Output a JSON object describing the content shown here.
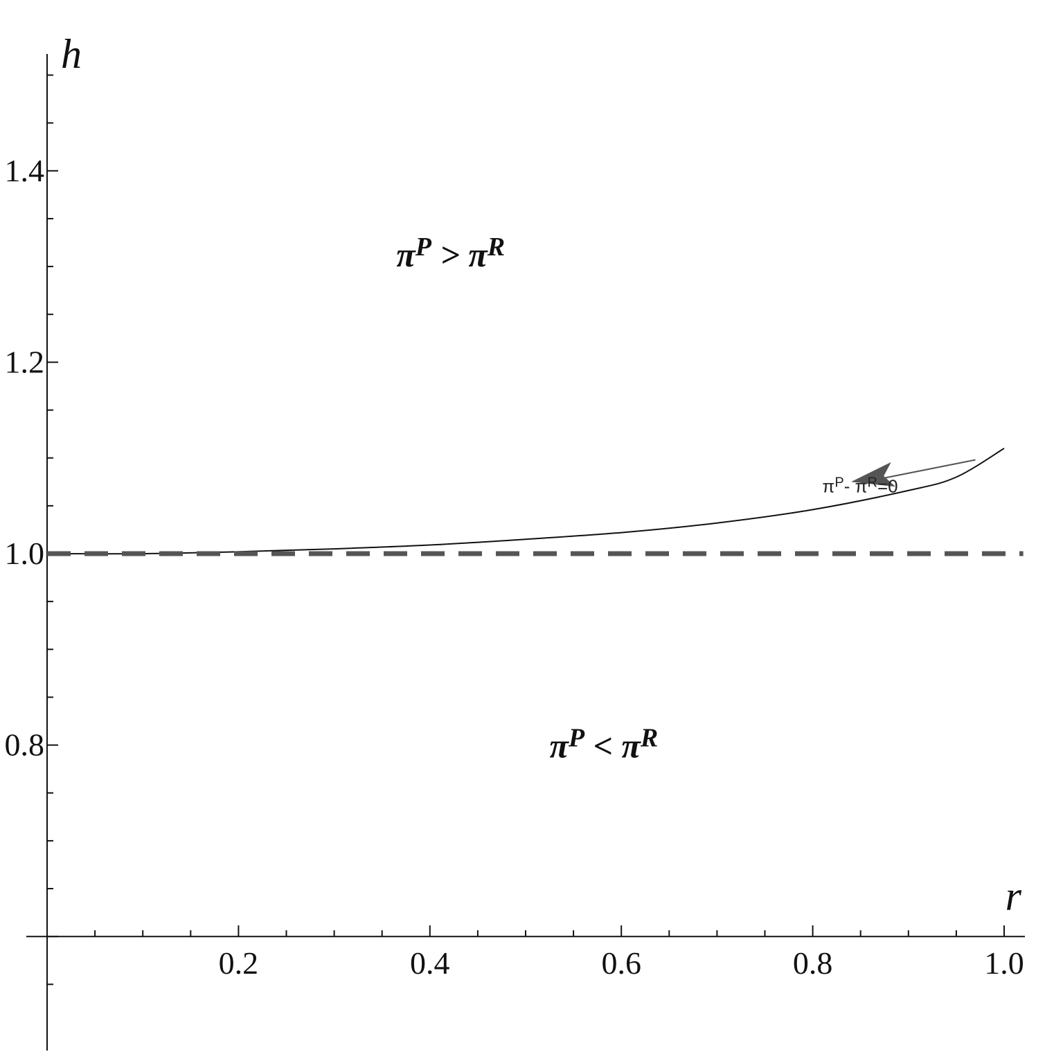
{
  "chart_data": {
    "type": "line",
    "title": "",
    "xlabel": "r",
    "ylabel": "h",
    "xlim": [
      0.0,
      1.02
    ],
    "ylim": [
      0.6,
      1.52
    ],
    "x_tick_labels": [
      "0.2",
      "0.4",
      "0.6",
      "0.8",
      "1.0"
    ],
    "x_ticks": [
      0.2,
      0.4,
      0.6,
      0.8,
      1.0
    ],
    "y_tick_labels": [
      "0.8",
      "1.0",
      "1.2",
      "1.4"
    ],
    "y_ticks": [
      0.8,
      1.0,
      1.2,
      1.4
    ],
    "grid": false,
    "series": [
      {
        "name": "",
        "style": "solid",
        "color": "#111111",
        "x": [
          0.0,
          0.1,
          0.2,
          0.3,
          0.4,
          0.5,
          0.6,
          0.7,
          0.8,
          0.9,
          0.95,
          1.0
        ],
        "y": [
          1.0,
          1.0,
          1.002,
          1.005,
          1.009,
          1.015,
          1.022,
          1.032,
          1.046,
          1.066,
          1.08,
          1.11
        ]
      },
      {
        "name": "",
        "style": "dashed",
        "color": "#555555",
        "x": [
          0.0,
          1.02
        ],
        "y": [
          1.0,
          1.0
        ]
      }
    ],
    "annotations": [
      {
        "id": "curve",
        "base": "π",
        "sup1": "P",
        "mid": "- π",
        "sup2": "R",
        "tail": "=0",
        "x": 0.81,
        "y": 1.064,
        "arrow_from": [
          0.97,
          1.098
        ],
        "arrow_to": [
          0.84,
          1.075
        ]
      },
      {
        "id": "upper",
        "base": "π",
        "sup1": "P",
        "mid": " > π",
        "sup2": "R",
        "x": 0.365,
        "y": 1.3
      },
      {
        "id": "lower",
        "base": "π",
        "sup1": "P",
        "mid": " < π",
        "sup2": "R",
        "x": 0.525,
        "y": 0.787
      }
    ],
    "colors": {
      "axis": "#111111",
      "curve": "#111111",
      "dashed": "#555555",
      "arrow": "#555555"
    }
  }
}
